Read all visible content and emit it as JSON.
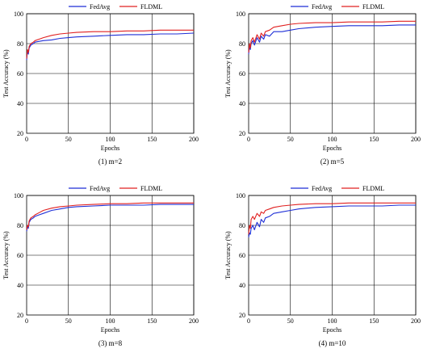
{
  "colors": {
    "FedAvg": "#1f2fd6",
    "FLDML": "#e02020"
  },
  "chart_data": [
    {
      "type": "line",
      "caption": "(1) m=2",
      "xlabel": "Epochs",
      "ylabel": "Test Accuracy  (%)",
      "xlim": [
        0,
        200
      ],
      "ylim": [
        20,
        100
      ],
      "xticks": [
        0,
        50,
        100,
        150,
        200
      ],
      "yticks": [
        20,
        40,
        60,
        80,
        100
      ],
      "grid": true,
      "legend": "top",
      "series": [
        {
          "name": "FedAvg",
          "x": [
            0,
            1,
            2,
            3,
            5,
            8,
            10,
            15,
            20,
            30,
            40,
            50,
            60,
            80,
            100,
            120,
            140,
            160,
            180,
            200
          ],
          "y": [
            69,
            75,
            73,
            77,
            79,
            80,
            81,
            81.5,
            82,
            82.5,
            83.5,
            84,
            84.5,
            85,
            85.5,
            86,
            86,
            86.5,
            86.5,
            87
          ]
        },
        {
          "name": "FLDML",
          "x": [
            0,
            1,
            2,
            3,
            5,
            8,
            10,
            15,
            20,
            30,
            40,
            50,
            60,
            80,
            100,
            120,
            140,
            160,
            180,
            200
          ],
          "y": [
            70,
            76,
            74,
            78,
            80,
            81,
            82,
            83,
            84,
            85.5,
            86.5,
            87,
            87.5,
            88,
            88,
            88.5,
            88.5,
            89,
            89,
            89
          ]
        }
      ]
    },
    {
      "type": "line",
      "caption": "(2) m=5",
      "xlabel": "Epochs",
      "ylabel": "Test Accuracy  (%)",
      "xlim": [
        0,
        200
      ],
      "ylim": [
        20,
        100
      ],
      "xticks": [
        0,
        50,
        100,
        150,
        200
      ],
      "yticks": [
        20,
        40,
        60,
        80,
        100
      ],
      "grid": true,
      "legend": "top",
      "series": [
        {
          "name": "FedAvg",
          "x": [
            0,
            1,
            2,
            3,
            5,
            7,
            10,
            13,
            15,
            18,
            20,
            25,
            30,
            40,
            50,
            60,
            80,
            100,
            120,
            140,
            160,
            180,
            200
          ],
          "y": [
            73,
            78,
            76,
            80,
            82,
            79,
            84,
            81,
            85,
            83,
            86,
            85,
            88,
            88,
            89,
            90,
            91,
            91.5,
            92,
            92,
            92,
            92.5,
            92.5
          ]
        },
        {
          "name": "FLDML",
          "x": [
            0,
            1,
            2,
            3,
            5,
            7,
            10,
            13,
            15,
            18,
            20,
            25,
            30,
            40,
            50,
            60,
            80,
            100,
            120,
            140,
            160,
            180,
            200
          ],
          "y": [
            74,
            80,
            77,
            82,
            84,
            81,
            86,
            83,
            87,
            85,
            88,
            89,
            91,
            92,
            93,
            93.5,
            94,
            94,
            94.5,
            94.5,
            94.5,
            95,
            95
          ]
        }
      ]
    },
    {
      "type": "line",
      "caption": "(3) m=8",
      "xlabel": "Epochs",
      "ylabel": "Test Accuracy  (%)",
      "xlim": [
        0,
        200
      ],
      "ylim": [
        20,
        100
      ],
      "xticks": [
        0,
        50,
        100,
        150,
        200
      ],
      "yticks": [
        20,
        40,
        60,
        80,
        100
      ],
      "grid": true,
      "legend": "top",
      "series": [
        {
          "name": "FedAvg",
          "x": [
            0,
            1,
            2,
            3,
            5,
            8,
            10,
            15,
            20,
            30,
            40,
            50,
            60,
            80,
            100,
            120,
            140,
            160,
            180,
            200
          ],
          "y": [
            76,
            79,
            78,
            82,
            84,
            85,
            86,
            87,
            88,
            90,
            91,
            92,
            92.5,
            93,
            93.5,
            93.5,
            93.5,
            94,
            94,
            94
          ]
        },
        {
          "name": "FLDML",
          "x": [
            0,
            1,
            2,
            3,
            5,
            8,
            10,
            15,
            20,
            30,
            40,
            50,
            60,
            80,
            100,
            120,
            140,
            160,
            180,
            200
          ],
          "y": [
            77,
            80,
            79,
            83,
            85,
            86,
            87,
            88.5,
            90,
            91.5,
            92.5,
            93,
            93.5,
            94,
            94.5,
            94.5,
            95,
            95,
            95,
            95
          ]
        }
      ]
    },
    {
      "type": "line",
      "caption": "(4) m=10",
      "xlabel": "Epochs",
      "ylabel": "Test Accuracy  (%)",
      "xlim": [
        0,
        200
      ],
      "ylim": [
        20,
        100
      ],
      "xticks": [
        0,
        50,
        100,
        150,
        200
      ],
      "yticks": [
        20,
        40,
        60,
        80,
        100
      ],
      "grid": true,
      "legend": "top",
      "series": [
        {
          "name": "FedAvg",
          "x": [
            0,
            1,
            2,
            3,
            5,
            7,
            10,
            13,
            15,
            18,
            20,
            25,
            30,
            40,
            50,
            60,
            80,
            100,
            120,
            140,
            160,
            180,
            200
          ],
          "y": [
            72,
            75,
            74,
            78,
            80,
            77,
            82,
            79,
            84,
            82,
            85,
            86,
            88,
            89,
            90,
            91,
            92,
            92.5,
            93,
            93,
            93,
            93.5,
            93.5
          ]
        },
        {
          "name": "FLDML",
          "x": [
            0,
            1,
            2,
            3,
            5,
            7,
            10,
            13,
            15,
            18,
            20,
            25,
            30,
            40,
            50,
            60,
            80,
            100,
            120,
            140,
            160,
            180,
            200
          ],
          "y": [
            74,
            80,
            78,
            84,
            86,
            84,
            88,
            86,
            89,
            88,
            90,
            91,
            92,
            93,
            93.5,
            94,
            94.5,
            94.5,
            95,
            95,
            95,
            95,
            95
          ]
        }
      ]
    }
  ]
}
